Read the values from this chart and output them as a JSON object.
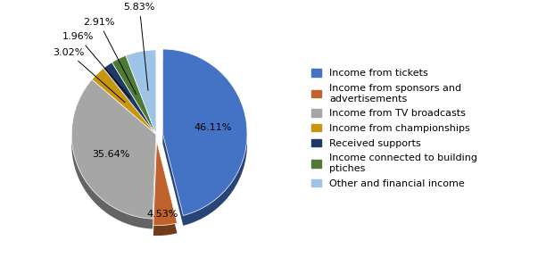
{
  "labels": [
    "Income from tickets",
    "Income from sponsors and\nadvertisements",
    "Income from TV broadcasts",
    "Income from championships",
    "Received supports",
    "Income connected to building\nptiches",
    "Other and financial income"
  ],
  "legend_labels": [
    "Income from tickets",
    "Income from sponsors and\nadvertisements",
    "Income from TV broadcasts",
    "Income from championships",
    "Received supports",
    "Income connected to building\nptiches",
    "Other and financial income"
  ],
  "values": [
    46.11,
    4.53,
    35.64,
    3.02,
    1.96,
    2.91,
    5.83
  ],
  "colors": [
    "#4472c4",
    "#c0622e",
    "#a6a6a6",
    "#c8960c",
    "#1f3864",
    "#4e7a35",
    "#9dc3e6"
  ],
  "explode": [
    0.08,
    0.08,
    0,
    0,
    0,
    0,
    0
  ],
  "pct_labels": [
    "46.11%",
    "4.53%",
    "35.64%",
    "3.02%",
    "1.96%",
    "2.91%",
    "5.83%"
  ],
  "startangle": 90,
  "legend_fontsize": 8,
  "pct_fontsize": 8,
  "background_color": "#ffffff"
}
